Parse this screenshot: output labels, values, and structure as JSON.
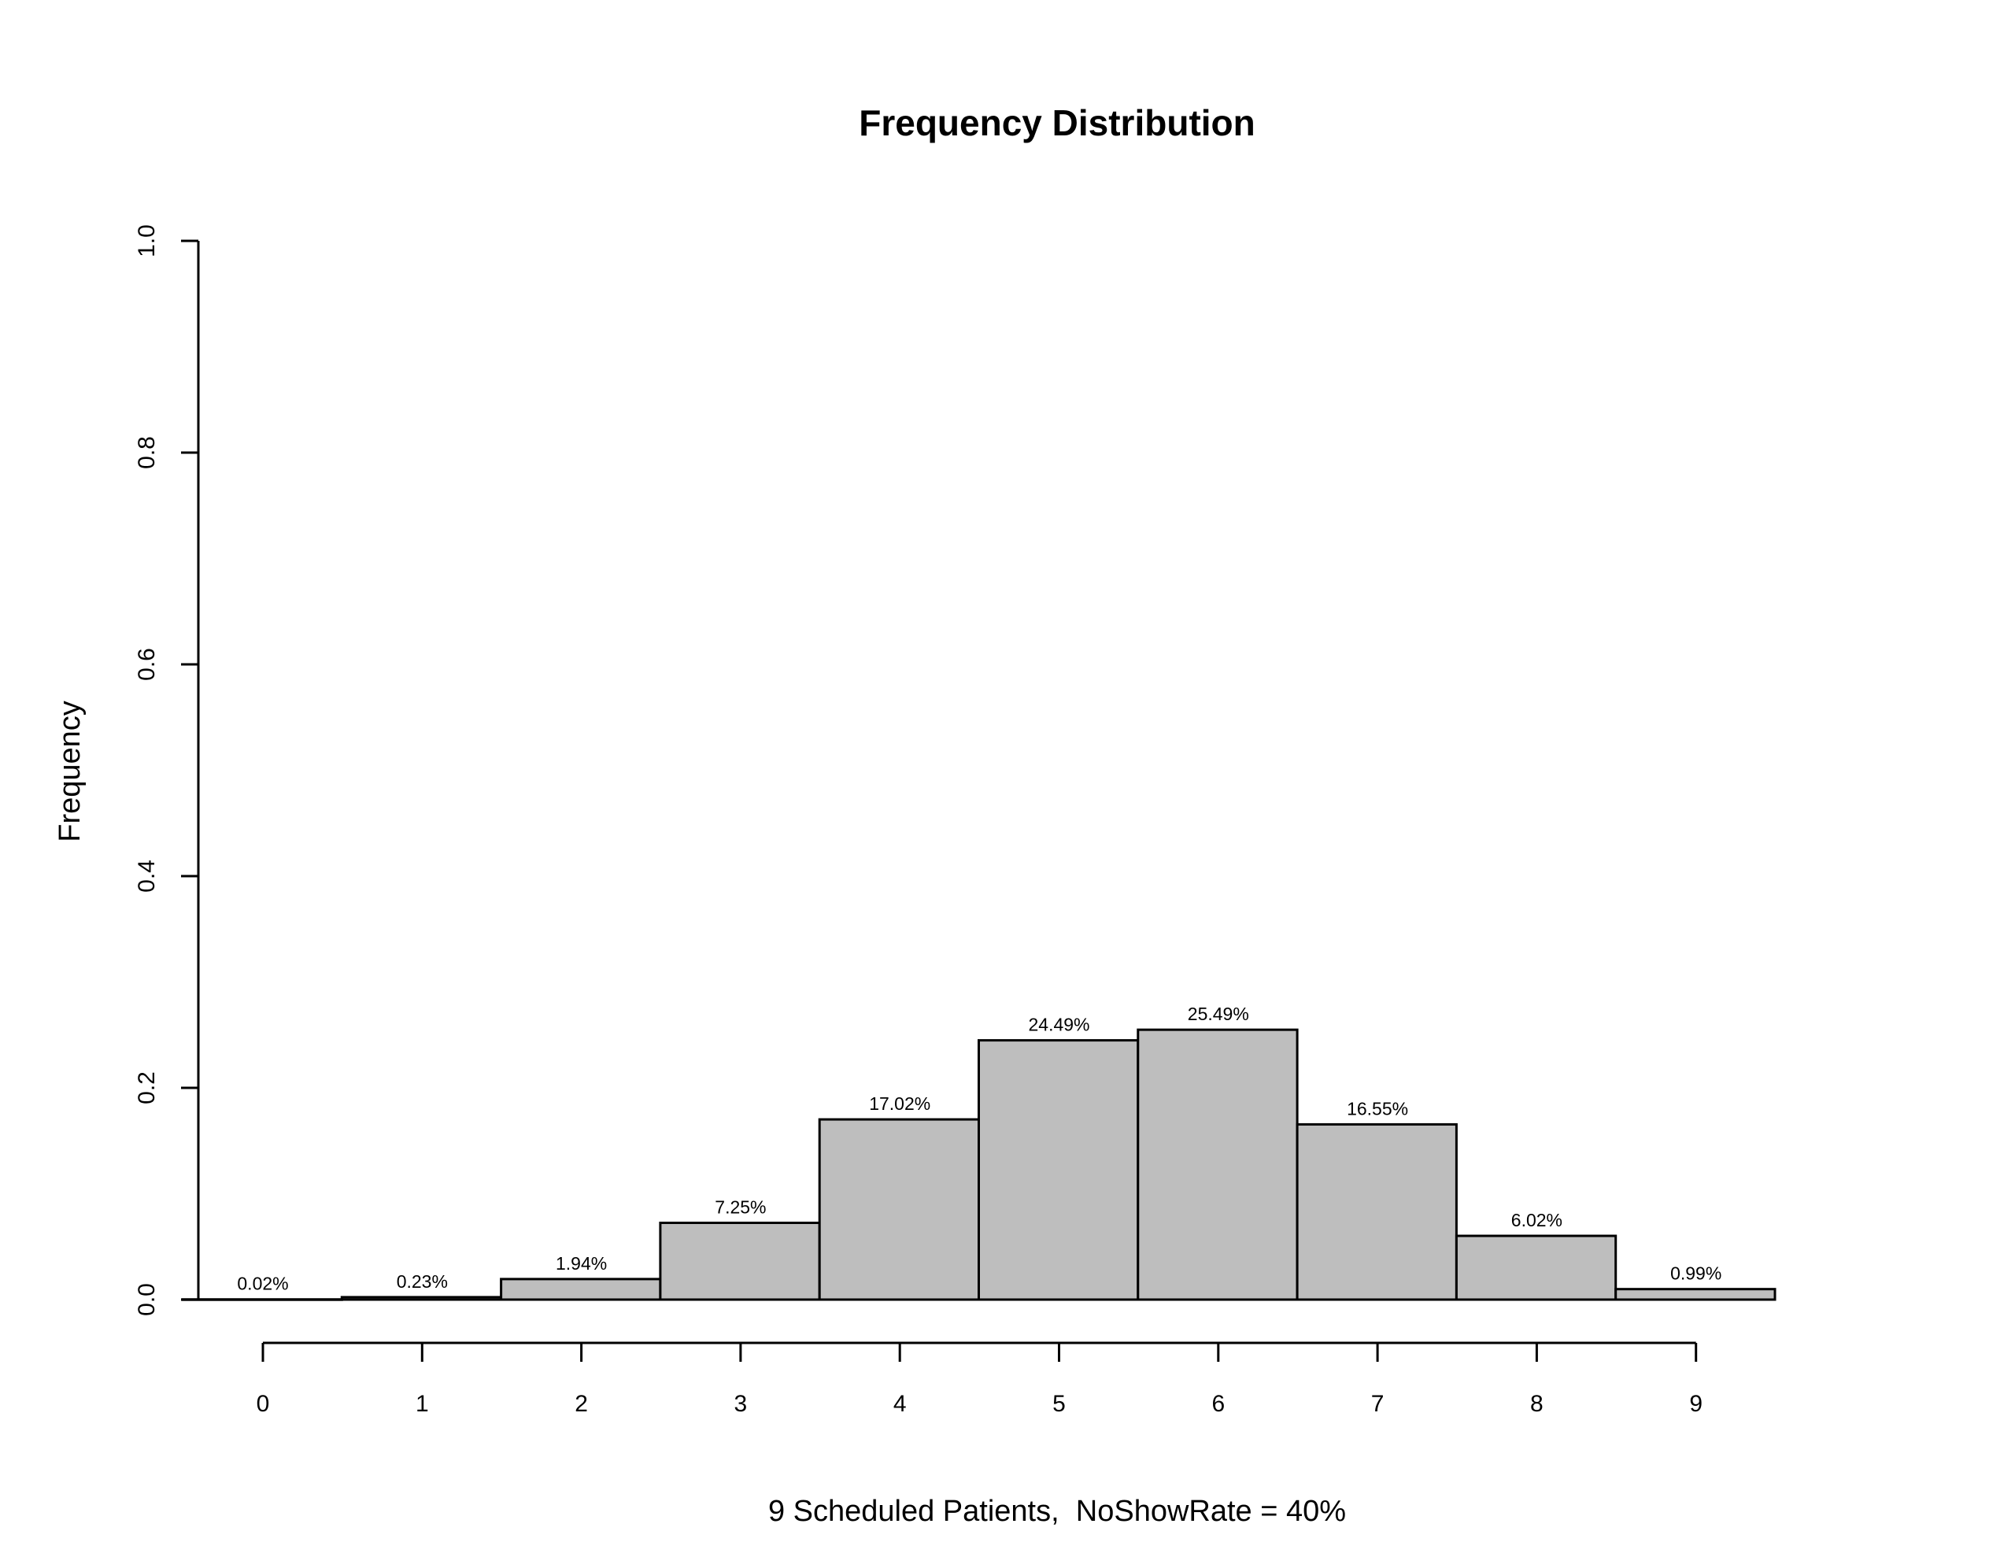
{
  "chart_data": {
    "type": "bar",
    "title": "Frequency Distribution",
    "xlabel": "9 Scheduled Patients,  NoShowRate = 40%",
    "ylabel": "Frequency",
    "categories": [
      "0",
      "1",
      "2",
      "3",
      "4",
      "5",
      "6",
      "7",
      "8",
      "9"
    ],
    "values": [
      0.0002,
      0.0023,
      0.0194,
      0.0725,
      0.1702,
      0.2449,
      0.2549,
      0.1655,
      0.0602,
      0.0099
    ],
    "bar_labels": [
      "0.02%",
      "0.23%",
      "1.94%",
      "7.25%",
      "17.02%",
      "24.49%",
      "25.49%",
      "16.55%",
      "6.02%",
      "0.99%"
    ],
    "ylim": [
      0,
      1
    ],
    "yticks": [
      "0.0",
      "0.2",
      "0.4",
      "0.6",
      "0.8",
      "1.0"
    ],
    "grid": false,
    "bar_color": "#bebebe"
  }
}
